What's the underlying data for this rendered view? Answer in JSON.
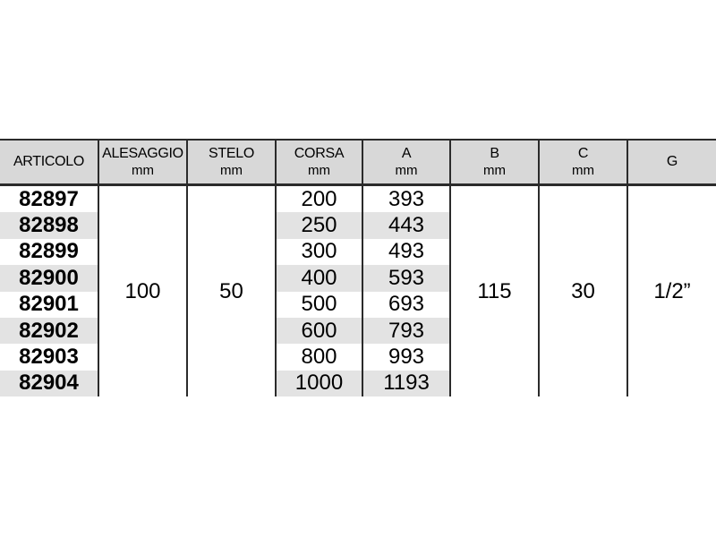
{
  "table": {
    "columns": [
      {
        "label": "ARTICOLO",
        "unit": ""
      },
      {
        "label": "ALESAGGIO",
        "unit": "mm"
      },
      {
        "label": "STELO",
        "unit": "mm"
      },
      {
        "label": "CORSA",
        "unit": "mm"
      },
      {
        "label": "A",
        "unit": "mm"
      },
      {
        "label": "B",
        "unit": "mm"
      },
      {
        "label": "C",
        "unit": "mm"
      },
      {
        "label": "G",
        "unit": ""
      }
    ],
    "rows": [
      {
        "articolo": "82897",
        "corsa": "200",
        "a": "393"
      },
      {
        "articolo": "82898",
        "corsa": "250",
        "a": "443"
      },
      {
        "articolo": "82899",
        "corsa": "300",
        "a": "493"
      },
      {
        "articolo": "82900",
        "corsa": "400",
        "a": "593"
      },
      {
        "articolo": "82901",
        "corsa": "500",
        "a": "693"
      },
      {
        "articolo": "82902",
        "corsa": "600",
        "a": "793"
      },
      {
        "articolo": "82903",
        "corsa": "800",
        "a": "993"
      },
      {
        "articolo": "82904",
        "corsa": "1000",
        "a": "1193"
      }
    ],
    "shared_values": {
      "alesaggio": "100",
      "stelo": "50",
      "b": "115",
      "c": "30",
      "g": "1/2”"
    },
    "colors": {
      "header_bg": "#d8d8d8",
      "stripe_bg": "#e3e3e3",
      "border": "#2b2b2b",
      "text": "#000000"
    }
  }
}
